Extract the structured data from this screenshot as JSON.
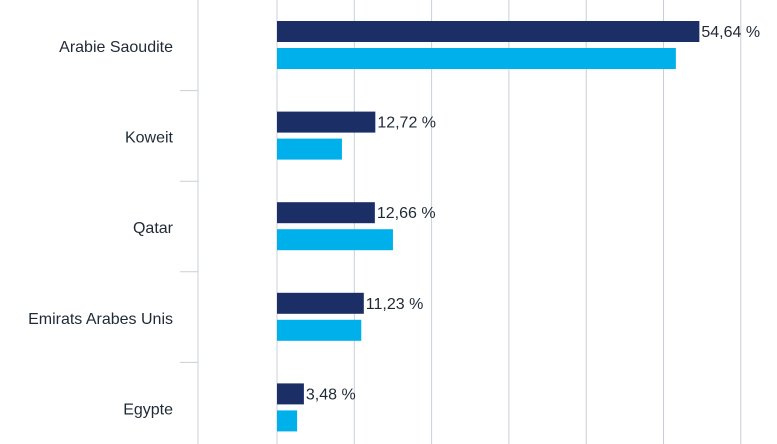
{
  "colors": {
    "series_dark": "#1b2f66",
    "series_light": "#00b0ea",
    "grid": "#c9cfd8",
    "text": "#1f2a36"
  },
  "chart_data": {
    "type": "bar",
    "orientation": "horizontal",
    "categories": [
      "Arabie Saoudite",
      "Koweit",
      "Qatar",
      "Emirats Arabes Unis",
      "Egypte"
    ],
    "series": [
      {
        "values": [
          54.64,
          12.72,
          12.66,
          11.23,
          3.48
        ],
        "labels": [
          "54,64 %",
          "12,72 %",
          "12,66 %",
          "11,23 %",
          "3,48 %"
        ]
      },
      {
        "values": [
          51.6,
          8.4,
          15.0,
          10.9,
          2.6
        ]
      }
    ],
    "xlim": [
      0,
      60
    ],
    "grid": true
  }
}
